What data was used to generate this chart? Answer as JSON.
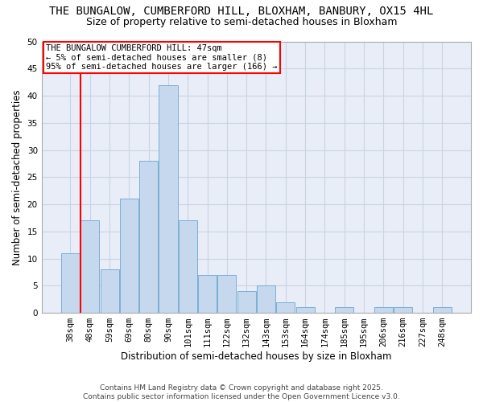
{
  "title_line1": "THE BUNGALOW, CUMBERFORD HILL, BLOXHAM, BANBURY, OX15 4HL",
  "title_line2": "Size of property relative to semi-detached houses in Bloxham",
  "categories": [
    "38sqm",
    "48sqm",
    "59sqm",
    "69sqm",
    "80sqm",
    "90sqm",
    "101sqm",
    "111sqm",
    "122sqm",
    "132sqm",
    "143sqm",
    "153sqm",
    "164sqm",
    "174sqm",
    "185sqm",
    "195sqm",
    "206sqm",
    "216sqm",
    "227sqm",
    "248sqm"
  ],
  "values": [
    11,
    17,
    8,
    21,
    28,
    42,
    17,
    7,
    7,
    4,
    5,
    2,
    1,
    0,
    1,
    0,
    1,
    1,
    0,
    1
  ],
  "bar_color": "#c5d8ed",
  "bar_edge_color": "#7bafd4",
  "grid_color": "#c8d4e4",
  "background_color": "#e8edf8",
  "red_line_x": 0.55,
  "annotation_title": "THE BUNGALOW CUMBERFORD HILL: 47sqm",
  "annotation_line2": "← 5% of semi-detached houses are smaller (8)",
  "annotation_line3": "95% of semi-detached houses are larger (166) →",
  "xlabel": "Distribution of semi-detached houses by size in Bloxham",
  "ylabel": "Number of semi-detached properties",
  "ylim": [
    0,
    50
  ],
  "yticks": [
    0,
    5,
    10,
    15,
    20,
    25,
    30,
    35,
    40,
    45,
    50
  ],
  "footer_line1": "Contains HM Land Registry data © Crown copyright and database right 2025.",
  "footer_line2": "Contains public sector information licensed under the Open Government Licence v3.0.",
  "title_fontsize": 10,
  "subtitle_fontsize": 9,
  "axis_label_fontsize": 8.5,
  "tick_fontsize": 7.5,
  "annotation_fontsize": 7.5,
  "footer_fontsize": 6.5
}
